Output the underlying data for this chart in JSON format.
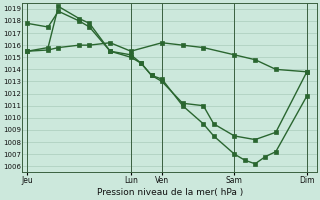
{
  "bg_color": "#cce8dc",
  "grid_color": "#aaccbc",
  "line_color": "#2a6630",
  "marker_color": "#2a6630",
  "xlabel": "Pression niveau de la mer( hPa )",
  "ylim": [
    1005.5,
    1019.5
  ],
  "yticks": [
    1006,
    1007,
    1008,
    1009,
    1010,
    1011,
    1012,
    1013,
    1014,
    1015,
    1016,
    1017,
    1018,
    1019
  ],
  "xtick_labels": [
    "Jeu",
    "Lun",
    "Ven",
    "Sam",
    "Dim"
  ],
  "xtick_positions": [
    0,
    10,
    13,
    20,
    27
  ],
  "vlines": [
    0,
    10,
    13,
    20,
    27
  ],
  "series1_x": [
    0,
    2,
    3,
    5,
    6,
    8,
    10,
    13,
    15,
    17,
    20,
    22,
    24,
    27
  ],
  "series1_y": [
    1015.5,
    1015.6,
    1015.8,
    1016.0,
    1016.0,
    1016.2,
    1015.5,
    1016.2,
    1016.0,
    1015.8,
    1015.2,
    1014.8,
    1014.0,
    1013.8
  ],
  "series2_x": [
    0,
    2,
    3,
    5,
    6,
    8,
    10,
    11,
    12,
    13,
    15,
    17,
    18,
    20,
    22,
    24,
    27
  ],
  "series2_y": [
    1017.8,
    1017.5,
    1018.8,
    1018.0,
    1017.5,
    1015.5,
    1015.2,
    1014.5,
    1013.5,
    1013.0,
    1011.2,
    1011.0,
    1009.5,
    1008.5,
    1008.2,
    1008.8,
    1013.8
  ],
  "series3_x": [
    0,
    2,
    3,
    5,
    6,
    8,
    10,
    11,
    12,
    13,
    15,
    17,
    18,
    20,
    21,
    22,
    23,
    24,
    27
  ],
  "series3_y": [
    1015.5,
    1015.8,
    1019.2,
    1018.2,
    1017.8,
    1015.5,
    1015.0,
    1014.5,
    1013.5,
    1013.2,
    1011.0,
    1009.5,
    1008.5,
    1007.0,
    1006.5,
    1006.2,
    1006.8,
    1007.2,
    1011.8
  ],
  "xlim": [
    -0.5,
    28
  ],
  "figsize": [
    3.2,
    2.0
  ],
  "dpi": 100
}
